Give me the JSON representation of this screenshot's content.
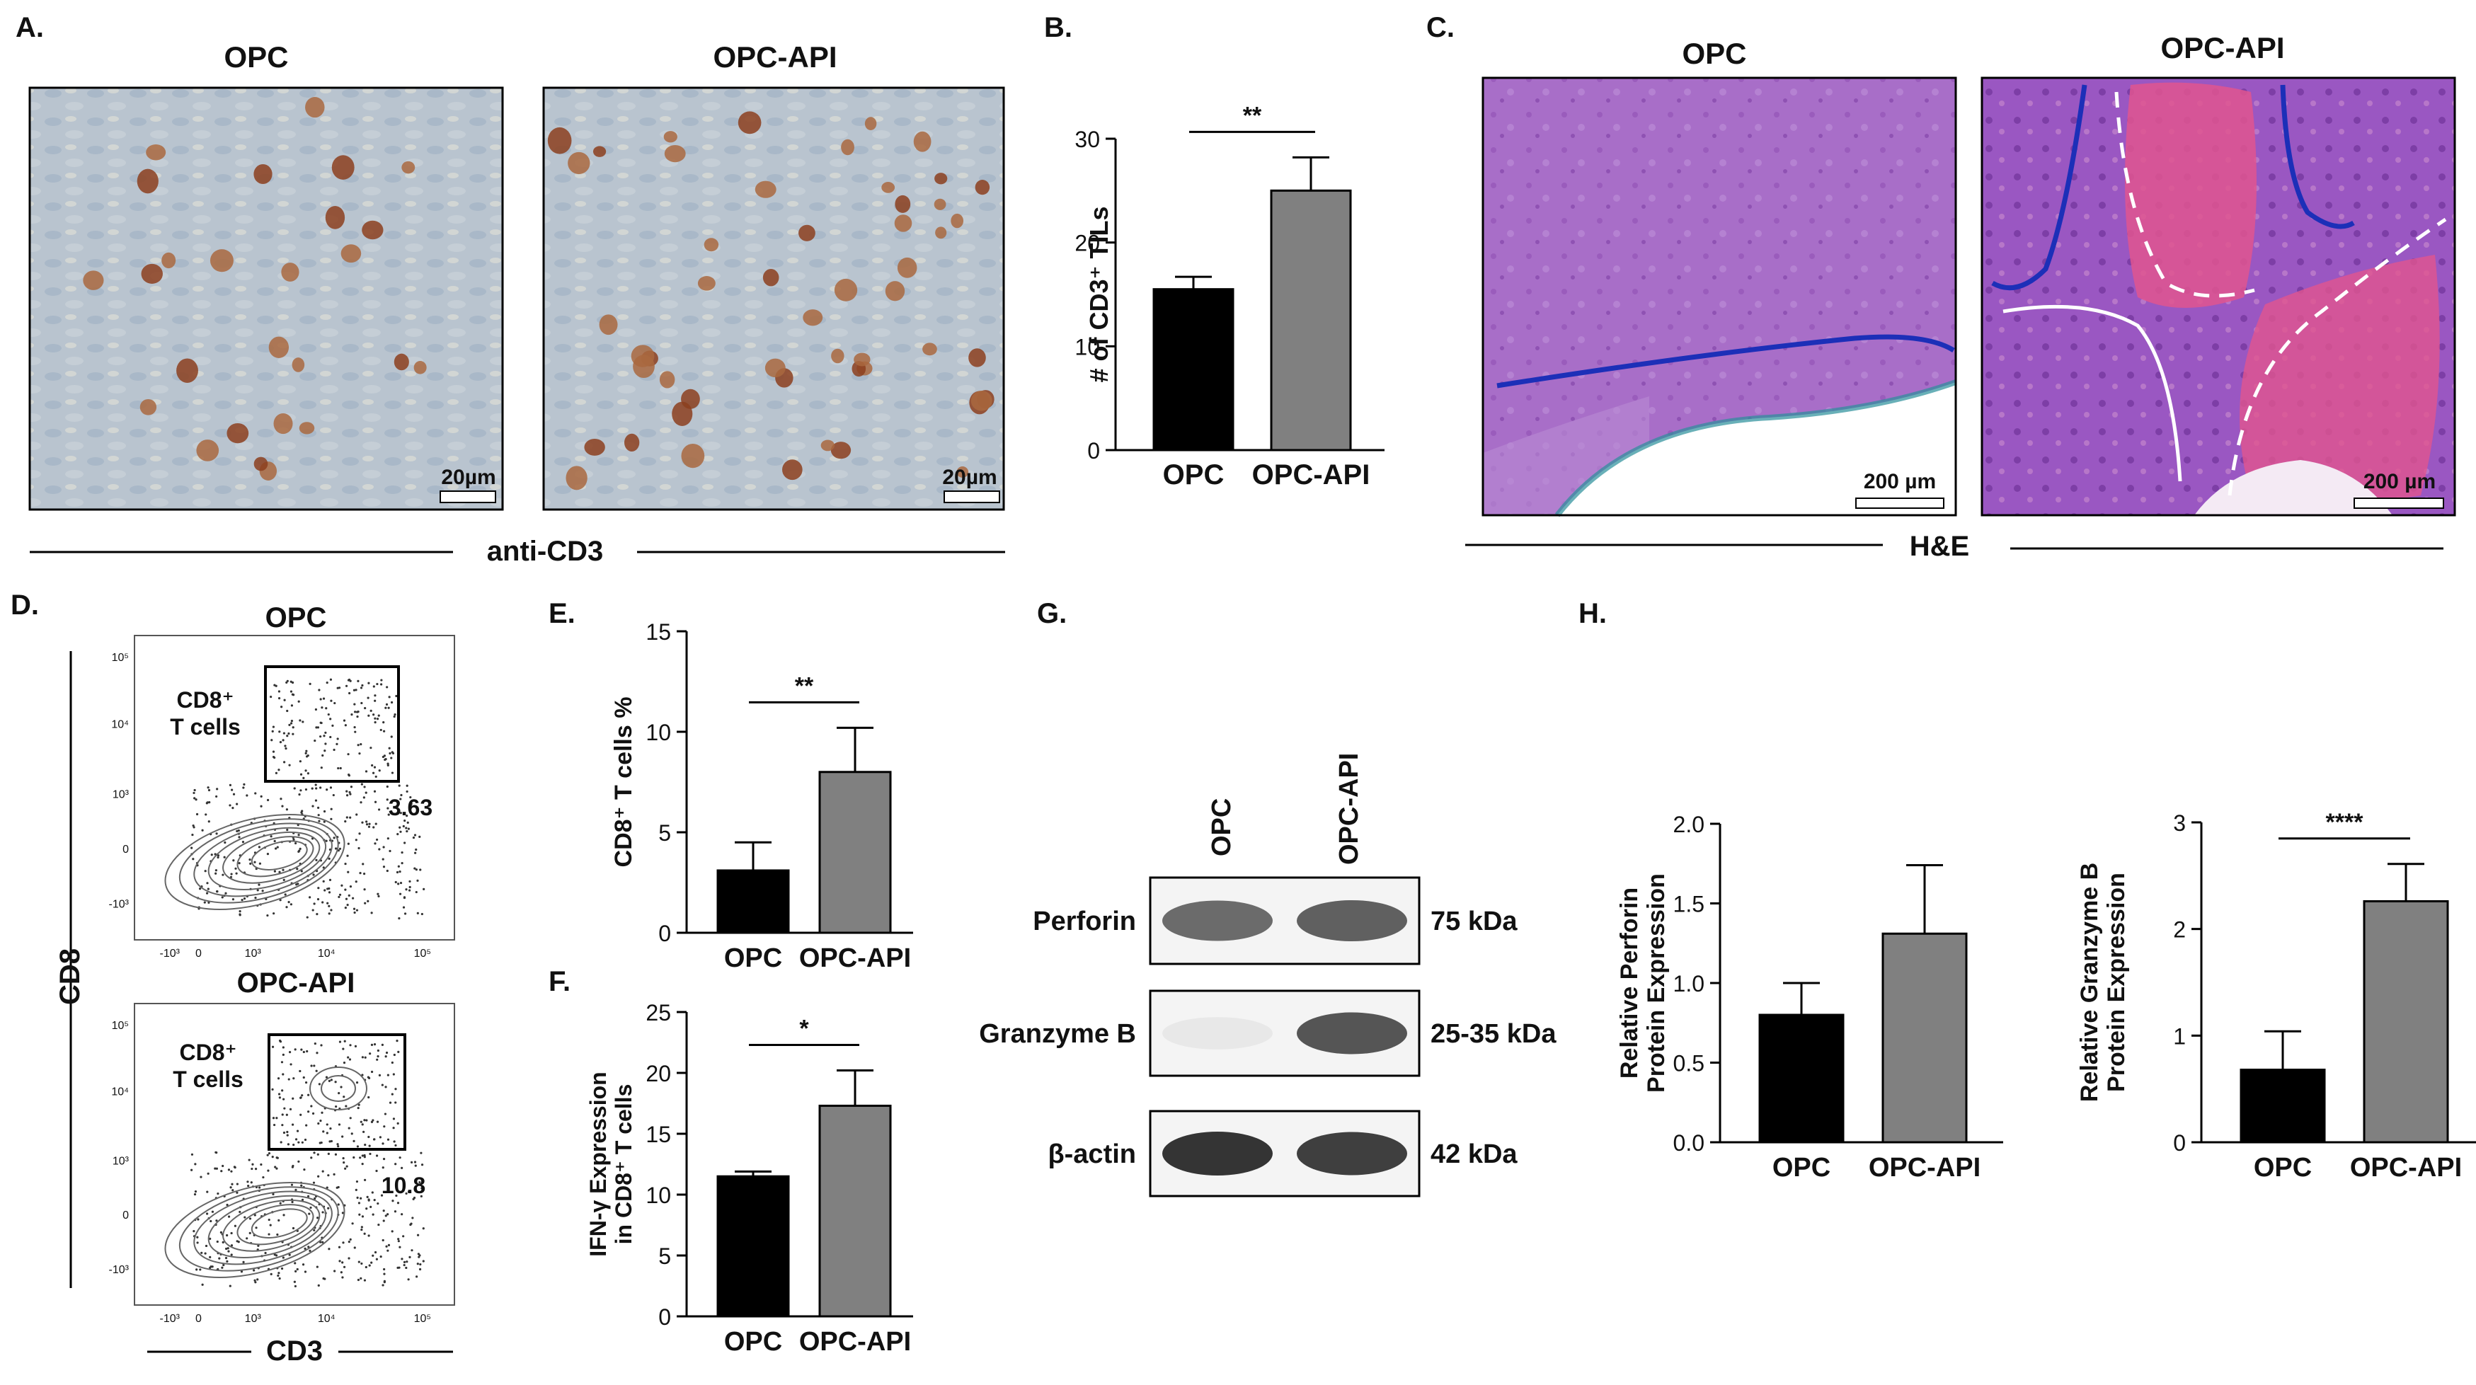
{
  "panel_labels": [
    "A.",
    "B.",
    "C.",
    "D.",
    "E.",
    "F.",
    "G.",
    "H."
  ],
  "panel_a": {
    "left_title": "OPC",
    "right_title": "OPC-API",
    "scale_left": "20µm",
    "scale_right": "20µm",
    "caption": "anti-CD3"
  },
  "panel_c": {
    "left_title": "OPC",
    "right_title": "OPC-API",
    "scale_left": "200 µm",
    "scale_right": "200 µm",
    "caption": "H&E"
  },
  "panel_d": {
    "top_title": "OPC",
    "bottom_title": "OPC-API",
    "gate_label_line1": "CD8⁺",
    "gate_label_line2": "T cells",
    "top_gate_value": "3.63",
    "bottom_gate_value": "10.8",
    "y_axis_label": "CD8",
    "x_axis_label": "CD3",
    "y_ticks": [
      "10⁵",
      "10⁴",
      "10³",
      "0",
      "-10³"
    ],
    "x_ticks": [
      "-10³",
      "0",
      "10³",
      "10⁴",
      "10⁵"
    ]
  },
  "panel_g": {
    "lane_labels": [
      "OPC",
      "OPC-API"
    ],
    "bands": [
      {
        "name": "Perforin",
        "size": "75 kDa",
        "intensity": [
          0.65,
          0.7
        ]
      },
      {
        "name": "Granzyme B",
        "size": "25-35 kDa",
        "intensity": [
          0.08,
          0.75
        ]
      },
      {
        "name": "β-actin",
        "size": "42 kDa",
        "intensity": [
          0.9,
          0.85
        ]
      }
    ]
  },
  "colors": {
    "opc_bar": "#000000",
    "opc_api_bar": "#808080",
    "ihc_background": "#b9c4cf",
    "he_background": "#a86ec8",
    "tumor_border_line": "#1c2fb8"
  },
  "chart_data": [
    {
      "id": "B",
      "type": "bar",
      "categories": [
        "OPC",
        "OPC-API"
      ],
      "values": [
        15.5,
        25
      ],
      "errors": [
        1.2,
        3.2
      ],
      "ylabel": "# of CD3⁺ TILs",
      "ylim": [
        0,
        30
      ],
      "yticks": [
        0,
        10,
        20,
        30
      ],
      "significance": "**"
    },
    {
      "id": "E",
      "type": "bar",
      "categories": [
        "OPC",
        "OPC-API"
      ],
      "values": [
        3.1,
        8
      ],
      "errors": [
        1.4,
        2.2
      ],
      "ylabel": "CD8⁺ T cells %",
      "ylim": [
        0,
        15
      ],
      "yticks": [
        0,
        5,
        10,
        15
      ],
      "significance": "**"
    },
    {
      "id": "F",
      "type": "bar",
      "categories": [
        "OPC",
        "OPC-API"
      ],
      "values": [
        11.5,
        17.3
      ],
      "errors": [
        0.4,
        2.9
      ],
      "ylabel": [
        "IFN-γ Expression",
        "in CD8⁺ T cells"
      ],
      "ylim": [
        0,
        25
      ],
      "yticks": [
        0,
        5,
        10,
        15,
        20,
        25
      ],
      "significance": "*"
    },
    {
      "id": "H1",
      "type": "bar",
      "categories": [
        "OPC",
        "OPC-API"
      ],
      "values": [
        0.8,
        1.31
      ],
      "errors": [
        0.2,
        0.43
      ],
      "ylabel": [
        "Relative Perforin",
        "Protein Expression"
      ],
      "ylim": [
        0,
        2
      ],
      "yticks": [
        "0.0",
        "0.5",
        "1.0",
        "1.5",
        "2.0"
      ],
      "significance": ""
    },
    {
      "id": "H2",
      "type": "bar",
      "categories": [
        "OPC",
        "OPC-API"
      ],
      "values": [
        0.68,
        2.26
      ],
      "errors": [
        0.36,
        0.35
      ],
      "ylabel": [
        "Relative Granzyme B",
        "Protein Expression"
      ],
      "ylim": [
        0,
        3
      ],
      "yticks": [
        0,
        1,
        2,
        3
      ],
      "significance": "****"
    }
  ]
}
